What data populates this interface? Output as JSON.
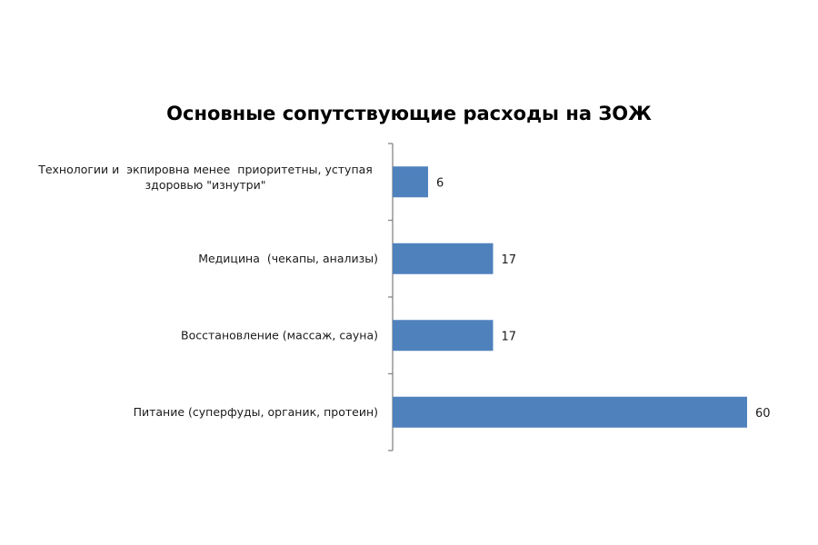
{
  "chart_data": {
    "type": "bar",
    "orientation": "horizontal",
    "title": "Основные сопутствующие расходы на ЗОЖ",
    "categories": [
      [
        "Технологии и  экпировна менее  приоритетны, уступая",
        "здоровью \"изнутри\""
      ],
      [
        "Медицина  (чекапы, анализы)"
      ],
      [
        "Восстановление (массаж, сауна)"
      ],
      [
        "Питание (суперфуды, органик, протеин)"
      ]
    ],
    "values": [
      6,
      17,
      17,
      60
    ],
    "data_labels": [
      "6",
      "17",
      "17",
      "60"
    ],
    "xlim": [
      0,
      60
    ],
    "grid": false,
    "legend": "none",
    "colors": {
      "bar": "#4f81bd",
      "axis": "#868686"
    }
  }
}
